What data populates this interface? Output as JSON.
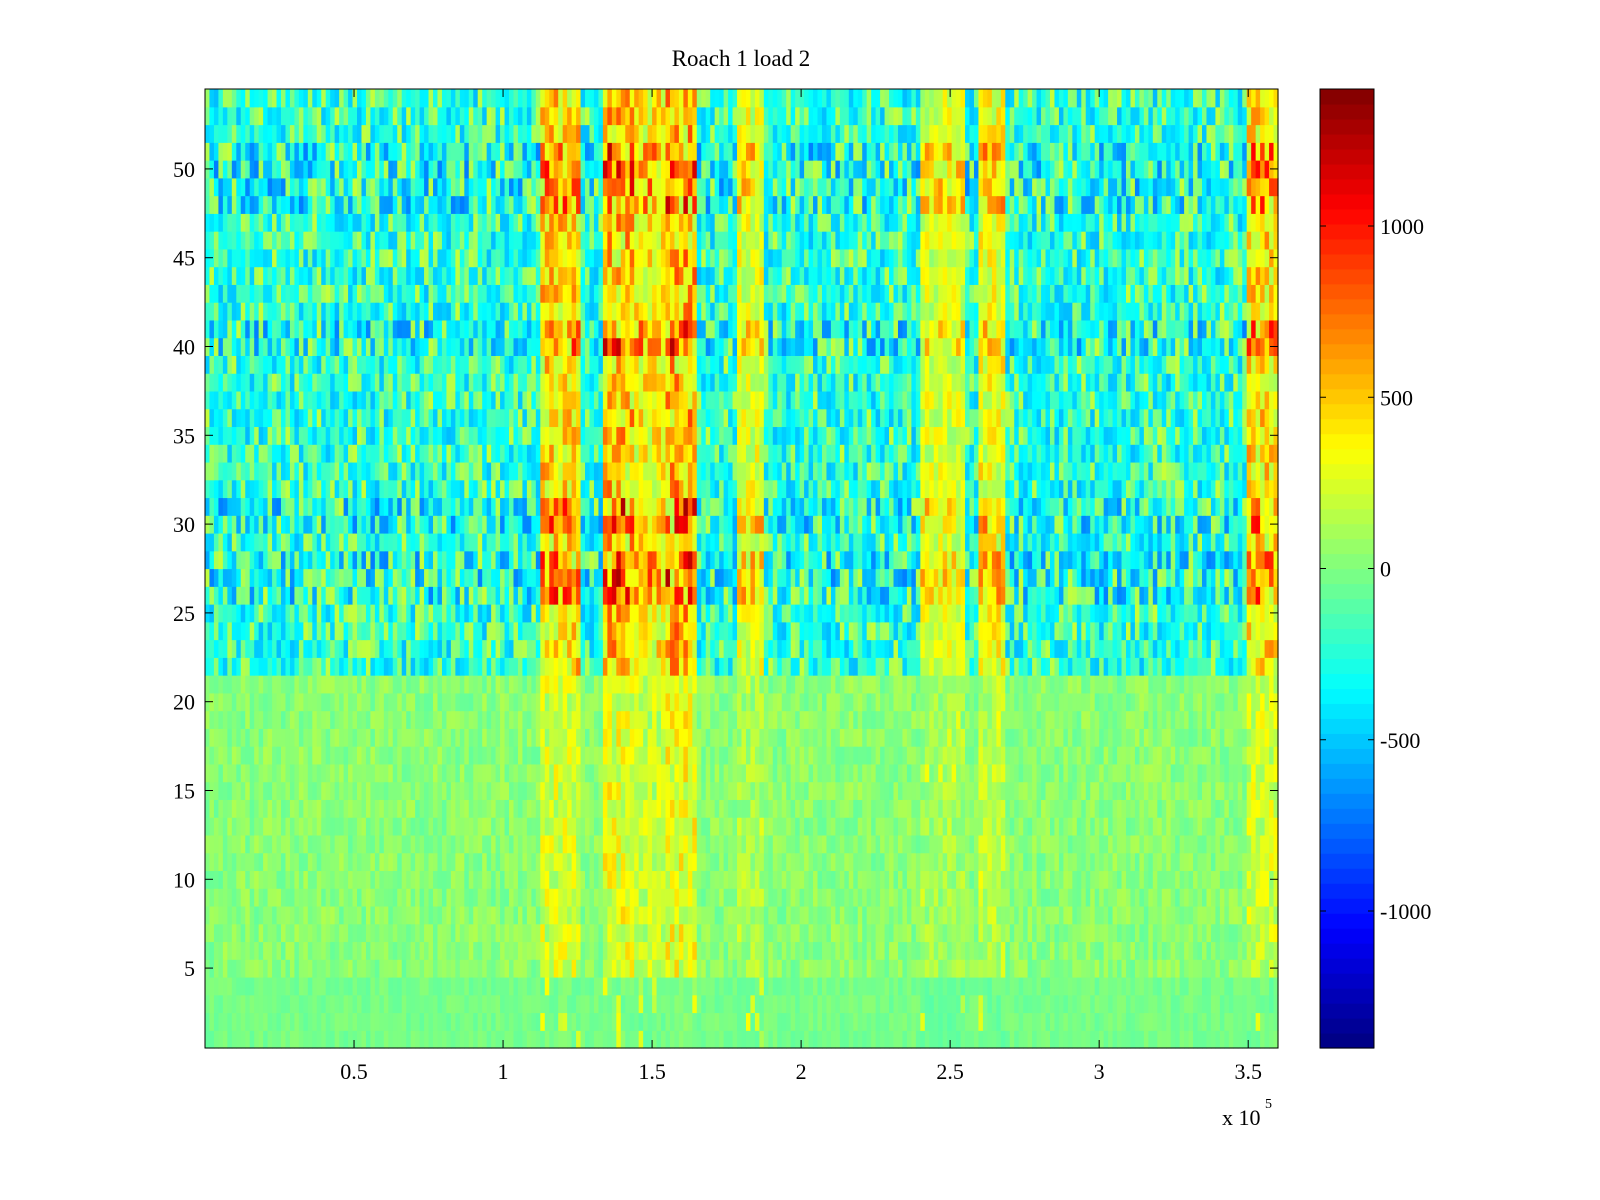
{
  "chart_data": {
    "type": "heatmap",
    "title": "Roach 1 load 2",
    "xlabel": "",
    "ylabel": "",
    "x_multiplier_label": {
      "base": "x 10",
      "exponent": "5"
    },
    "xlim": [
      0,
      3.6
    ],
    "ylim": [
      0.5,
      54.5
    ],
    "x_ticks": [
      0.5,
      1,
      1.5,
      2,
      2.5,
      3,
      3.5
    ],
    "x_tick_labels": [
      "0.5",
      "1",
      "1.5",
      "2",
      "2.5",
      "3",
      "3.5"
    ],
    "y_ticks": [
      5,
      10,
      15,
      20,
      25,
      30,
      35,
      40,
      45,
      50
    ],
    "y_tick_labels": [
      "5",
      "10",
      "15",
      "20",
      "25",
      "30",
      "35",
      "40",
      "45",
      "50"
    ],
    "colorbar": {
      "colormap": "jet",
      "clim": [
        -1400,
        1400
      ],
      "ticks": [
        -1000,
        -500,
        0,
        500,
        1000
      ],
      "tick_labels": [
        "-1000",
        "-500",
        "0",
        "500",
        "1000"
      ]
    },
    "rows": 54,
    "active_bands_x": [
      {
        "start": 1.12,
        "end": 1.26,
        "peak": 1150
      },
      {
        "start": 1.34,
        "end": 1.44,
        "peak": 1300
      },
      {
        "start": 1.44,
        "end": 1.54,
        "peak": 1000
      },
      {
        "start": 1.54,
        "end": 1.65,
        "peak": 1350
      },
      {
        "start": 1.78,
        "end": 1.87,
        "peak": 800
      },
      {
        "start": 2.4,
        "end": 2.55,
        "peak": 750
      },
      {
        "start": 2.6,
        "end": 2.68,
        "peak": 900
      },
      {
        "start": 3.49,
        "end": 3.6,
        "peak": 1100
      }
    ],
    "strong_rows": [
      26,
      27,
      28,
      30,
      31,
      40,
      41,
      48,
      49,
      50,
      51
    ],
    "negative_rows": [
      22,
      23,
      24,
      25,
      26,
      27,
      28,
      29,
      30,
      31,
      32,
      33,
      34,
      35,
      36,
      37,
      38,
      39,
      40,
      41,
      42,
      43,
      44,
      45,
      46,
      47,
      48,
      49,
      50,
      51,
      52,
      53,
      54
    ]
  }
}
